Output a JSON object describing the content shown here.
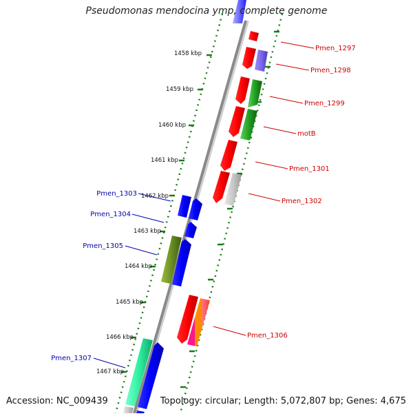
{
  "title": "Pseudomonas mendocina ymp, complete genome",
  "accession": "Accession: NC_009439",
  "topology": "Topology: circular; Length: 5,072,807 bp; Genes: 4,675",
  "colors": {
    "forward_label": "#cc0000",
    "reverse_label": "#0000aa",
    "tick": "#1a7a1a",
    "backbone": "#8a8a8a"
  },
  "ticks": [
    "1458 kbp",
    "1459 kbp",
    "1460 kbp",
    "1461 kbp",
    "1462 kbp",
    "1463 kbp",
    "1464 kbp",
    "1465 kbp",
    "1466 kbp",
    "1467 kbp"
  ],
  "genes_forward": [
    "Pmen_1297",
    "Pmen_1298",
    "Pmen_1299",
    "motB",
    "Pmen_1301",
    "Pmen_1302",
    "Pmen_1306"
  ],
  "genes_reverse": [
    "Pmen_1303",
    "Pmen_1304",
    "Pmen_1305",
    "Pmen_1307"
  ]
}
